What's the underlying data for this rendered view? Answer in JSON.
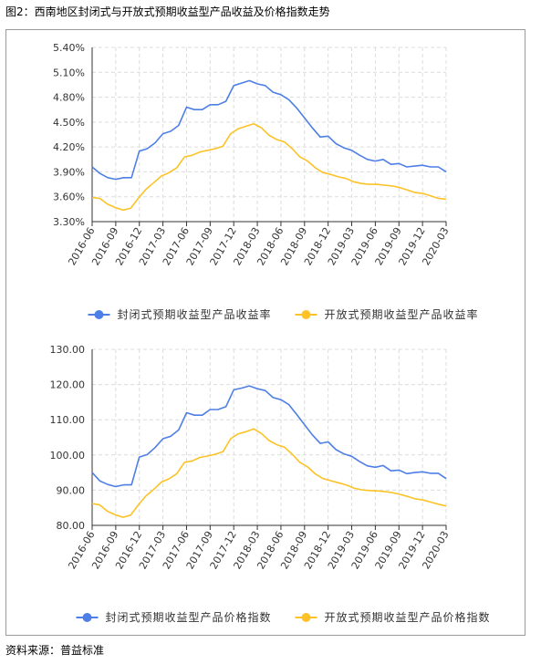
{
  "figure_title": "图2：西南地区封闭式与开放式预期收益型产品收益及价格指数走势",
  "source": "资料来源：普益标准",
  "colors": {
    "closed": "#4e7fe6",
    "open": "#fcc226",
    "grid": "#dcdcdc",
    "axis": "#333333"
  },
  "chart_data": [
    {
      "type": "line",
      "x_ticks": [
        "2016-06",
        "2016-09",
        "2016-12",
        "2017-03",
        "2017-06",
        "2017-09",
        "2017-12",
        "2018-03",
        "2018-06",
        "2018-09",
        "2018-12",
        "2019-03",
        "2019-06",
        "2019-09",
        "2019-12",
        "2020-03"
      ],
      "y_ticks": [
        "3.30%",
        "3.60%",
        "3.90%",
        "4.20%",
        "4.50%",
        "4.80%",
        "5.10%",
        "5.40%"
      ],
      "ylim": [
        3.3,
        5.4
      ],
      "grid": true,
      "legend_position": "bottom",
      "series": [
        {
          "name": "封闭式预期收益型产品收益率",
          "color": "#4e7fe6",
          "values": [
            3.96,
            3.88,
            3.83,
            3.81,
            3.83,
            3.83,
            4.15,
            4.18,
            4.25,
            4.36,
            4.39,
            4.46,
            4.68,
            4.65,
            4.65,
            4.71,
            4.71,
            4.75,
            4.94,
            4.97,
            5.0,
            4.96,
            4.94,
            4.86,
            4.83,
            4.77,
            4.67,
            4.55,
            4.43,
            4.32,
            4.33,
            4.24,
            4.19,
            4.16,
            4.1,
            4.05,
            4.03,
            4.05,
            3.99,
            4.0,
            3.96,
            3.97,
            3.98,
            3.96,
            3.96,
            3.9
          ]
        },
        {
          "name": "开放式预期收益型产品收益率",
          "color": "#fcc226",
          "values": [
            3.59,
            3.58,
            3.51,
            3.47,
            3.44,
            3.46,
            3.58,
            3.69,
            3.77,
            3.85,
            3.89,
            3.95,
            4.08,
            4.1,
            4.14,
            4.16,
            4.18,
            4.21,
            4.36,
            4.42,
            4.45,
            4.48,
            4.43,
            4.34,
            4.29,
            4.26,
            4.18,
            4.08,
            4.03,
            3.95,
            3.89,
            3.87,
            3.84,
            3.82,
            3.78,
            3.76,
            3.75,
            3.75,
            3.74,
            3.73,
            3.71,
            3.68,
            3.65,
            3.64,
            3.61,
            3.58,
            3.57
          ]
        }
      ]
    },
    {
      "type": "line",
      "x_ticks": [
        "2016-06",
        "2016-09",
        "2016-12",
        "2017-03",
        "2017-06",
        "2017-09",
        "2017-12",
        "2018-03",
        "2018-06",
        "2018-09",
        "2018-12",
        "2019-03",
        "2019-06",
        "2019-09",
        "2019-12",
        "2020-03"
      ],
      "y_ticks": [
        "80.00",
        "90.00",
        "100.00",
        "110.00",
        "120.00",
        "130.00"
      ],
      "ylim": [
        80,
        130
      ],
      "grid": true,
      "legend_position": "bottom",
      "series": [
        {
          "name": "封闭式预期收益型产品价格指数",
          "color": "#4e7fe6",
          "values": [
            95.0,
            92.6,
            91.6,
            91.0,
            91.5,
            91.5,
            99.4,
            100.1,
            102.1,
            104.6,
            105.3,
            107.1,
            112.0,
            111.3,
            111.3,
            112.9,
            112.9,
            113.7,
            118.5,
            119.0,
            119.6,
            118.8,
            118.3,
            116.3,
            115.7,
            114.3,
            111.5,
            108.6,
            105.7,
            103.3,
            103.7,
            101.5,
            100.3,
            99.6,
            98.1,
            96.9,
            96.5,
            97.0,
            95.5,
            95.7,
            94.7,
            95.0,
            95.2,
            94.8,
            94.8,
            93.3
          ]
        },
        {
          "name": "开放式预期收益型产品价格指数",
          "color": "#fcc226",
          "values": [
            86.2,
            85.8,
            84.0,
            83.0,
            82.3,
            82.9,
            85.8,
            88.4,
            90.2,
            92.3,
            93.2,
            94.7,
            97.9,
            98.3,
            99.3,
            99.7,
            100.2,
            100.9,
            104.6,
            106.0,
            106.6,
            107.4,
            106.1,
            104.1,
            102.9,
            102.2,
            100.2,
            97.9,
            96.6,
            94.6,
            93.3,
            92.7,
            92.1,
            91.5,
            90.6,
            90.1,
            89.9,
            89.8,
            89.6,
            89.3,
            88.8,
            88.2,
            87.5,
            87.2,
            86.6,
            86.0,
            85.5
          ]
        }
      ]
    }
  ]
}
